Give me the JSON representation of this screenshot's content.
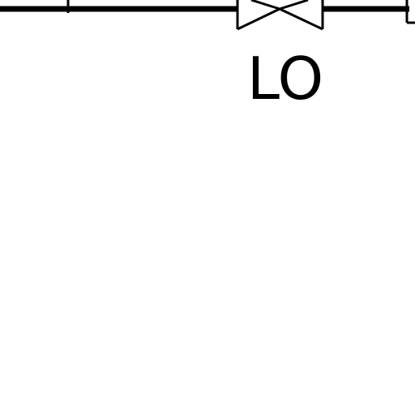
{
  "diagram": {
    "valve": {
      "type": "gate-valve-icon",
      "label": "LO"
    },
    "colors": {
      "background": "#ffffff",
      "line": "#000000"
    }
  }
}
